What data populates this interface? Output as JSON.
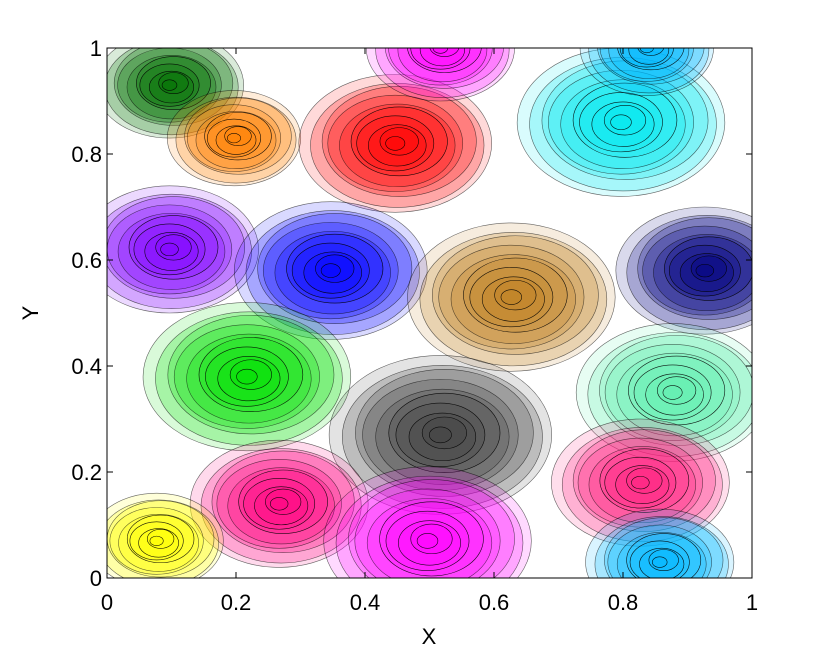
{
  "chart_data": {
    "type": "contour",
    "xlabel": "X",
    "ylabel": "Y",
    "xlim": [
      0,
      1
    ],
    "ylim": [
      0,
      1
    ],
    "xticks": [
      0,
      0.2,
      0.4,
      0.6,
      0.8,
      1
    ],
    "yticks": [
      0,
      0.2,
      0.4,
      0.6,
      0.8,
      1
    ],
    "blobs": [
      {
        "x": 0.1,
        "y": 0.93,
        "r": 0.1,
        "color": "#007000"
      },
      {
        "x": 0.2,
        "y": 0.83,
        "r": 0.09,
        "color": "#ff8000"
      },
      {
        "x": 0.45,
        "y": 0.82,
        "r": 0.13,
        "color": "#ff0000"
      },
      {
        "x": 0.8,
        "y": 0.86,
        "r": 0.14,
        "color": "#00e8f0"
      },
      {
        "x": 0.1,
        "y": 0.62,
        "r": 0.12,
        "color": "#8000ff"
      },
      {
        "x": 0.35,
        "y": 0.58,
        "r": 0.13,
        "color": "#0000ff"
      },
      {
        "x": 0.63,
        "y": 0.53,
        "r": 0.14,
        "color": "#c08020"
      },
      {
        "x": 0.93,
        "y": 0.58,
        "r": 0.12,
        "color": "#000080"
      },
      {
        "x": 0.22,
        "y": 0.38,
        "r": 0.14,
        "color": "#00e000"
      },
      {
        "x": 0.52,
        "y": 0.27,
        "r": 0.15,
        "color": "#404040"
      },
      {
        "x": 0.88,
        "y": 0.35,
        "r": 0.13,
        "color": "#60f0b0"
      },
      {
        "x": 0.27,
        "y": 0.14,
        "r": 0.12,
        "color": "#ff0080"
      },
      {
        "x": 0.5,
        "y": 0.07,
        "r": 0.14,
        "color": "#ff00ff"
      },
      {
        "x": 0.83,
        "y": 0.18,
        "r": 0.12,
        "color": "#ff2080"
      },
      {
        "x": 0.08,
        "y": 0.07,
        "r": 0.09,
        "color": "#ffff00"
      },
      {
        "x": 0.86,
        "y": 0.03,
        "r": 0.1,
        "color": "#00b8ff"
      },
      {
        "x": 0.52,
        "y": 1.0,
        "r": 0.1,
        "color": "#ff00ff"
      },
      {
        "x": 0.84,
        "y": 1.0,
        "r": 0.09,
        "color": "#00b8ff"
      }
    ]
  }
}
